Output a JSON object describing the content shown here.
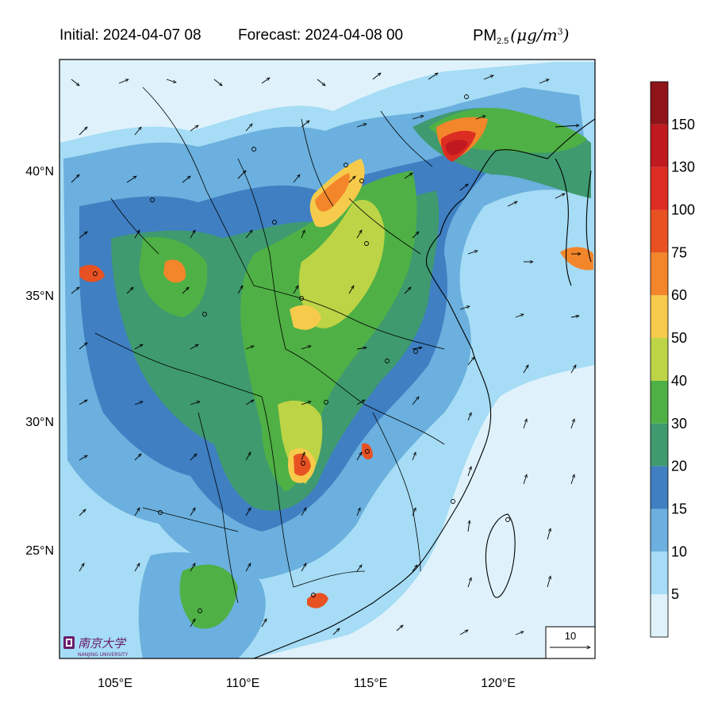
{
  "title": {
    "initial": "Initial: 2024-04-07 08",
    "forecast": "Forecast: 2024-04-08 00",
    "variable": "PM",
    "variable_sub": "2.5",
    "unit_open": "(μg/m",
    "unit_sup": "3",
    "unit_close": ")"
  },
  "axes": {
    "x_ticks": [
      "105°E",
      "110°E",
      "115°E",
      "120°E"
    ],
    "y_ticks": [
      "40°N",
      "35°N",
      "30°N",
      "25°N"
    ]
  },
  "colorbar": {
    "labels": [
      "5",
      "10",
      "15",
      "20",
      "30",
      "40",
      "50",
      "60",
      "75",
      "100",
      "130",
      "150"
    ],
    "colors": [
      "#dff2fb",
      "#a6dcf5",
      "#6bb0de",
      "#3f7fc2",
      "#3f9a70",
      "#4fb045",
      "#bcd445",
      "#f6cb4b",
      "#f3862b",
      "#e85223",
      "#dc2d22",
      "#c01a20",
      "#8e141a"
    ]
  },
  "wind_scale": {
    "label": "10"
  },
  "logo": {
    "name": "南京大学",
    "subtitle": "NANJING UNIVERSITY"
  },
  "colors": {
    "background_low": "#dff2fb",
    "ocean": "#a6dcf5",
    "border": "#000000"
  }
}
